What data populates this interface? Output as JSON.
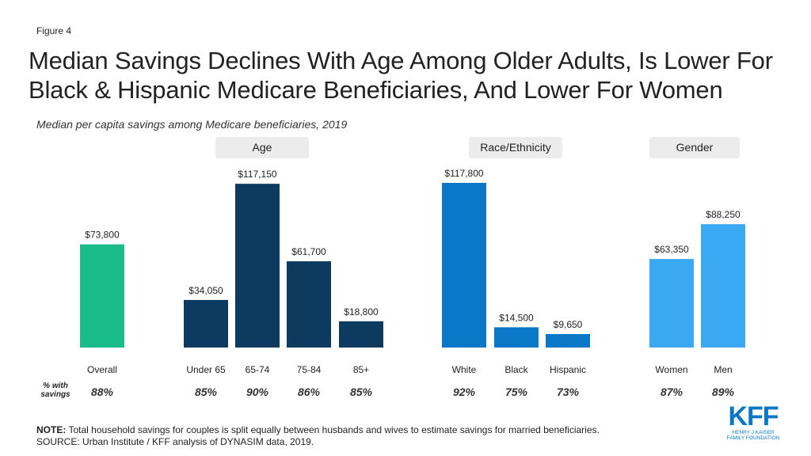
{
  "figure_label": "Figure 4",
  "title": "Median Savings Declines With Age Among Older Adults, Is Lower For Black & Hispanic Medicare Beneficiaries, And Lower For Women",
  "subtitle": "Median per capita savings among Medicare beneficiaries, 2019",
  "groups": [
    {
      "name": "Age"
    },
    {
      "name": "Race/Ethnicity"
    },
    {
      "name": "Gender"
    }
  ],
  "pct_label": "% with savings",
  "chart_data": {
    "type": "bar",
    "categories": [
      "Overall",
      "Under 65",
      "65-74",
      "75-84",
      "85+",
      "White",
      "Black",
      "Hispanic",
      "Women",
      "Men"
    ],
    "values": [
      73800,
      34050,
      117150,
      61700,
      18800,
      117800,
      14500,
      9650,
      63350,
      88250
    ],
    "value_labels": [
      "$73,800",
      "$34,050",
      "$117,150",
      "$61,700",
      "$18,800",
      "$117,800",
      "$14,500",
      "$9,650",
      "$63,350",
      "$88,250"
    ],
    "pct_with_savings": [
      "88%",
      "85%",
      "90%",
      "86%",
      "85%",
      "92%",
      "75%",
      "73%",
      "87%",
      "89%"
    ],
    "bar_colors": [
      "#1abc8a",
      "#0d3a5f",
      "#0d3a5f",
      "#0d3a5f",
      "#0d3a5f",
      "#0a78c7",
      "#0a78c7",
      "#0a78c7",
      "#3aa8f2",
      "#3aa8f2"
    ],
    "bar_groups": [
      "Overall",
      "Age",
      "Age",
      "Age",
      "Age",
      "Race/Ethnicity",
      "Race/Ethnicity",
      "Race/Ethnicity",
      "Gender",
      "Gender"
    ],
    "ylim": [
      0,
      130000
    ]
  },
  "note": {
    "note_label": "NOTE:",
    "note_text": " Total household savings for couples is split equally between husbands and wives to estimate savings for married beneficiaries.",
    "source": "SOURCE: Urban Institute  / KFF analysis of DYNASIM data, 2019."
  },
  "logo": {
    "letters": "KFF",
    "line1": "HENRY J KAISER",
    "line2": "FAMILY FOUNDATION"
  }
}
